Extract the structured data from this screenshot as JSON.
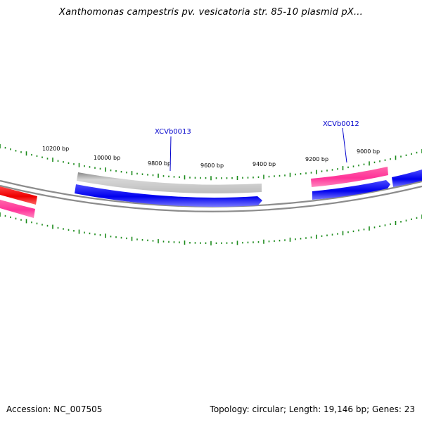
{
  "title": "Xanthomonas campestris pv. vesicatoria str. 85-10 plasmid pX...",
  "footer": {
    "accession": "Accession: NC_007505",
    "summary": "Topology: circular; Length: 19,146 bp; Genes: 23"
  },
  "ticks": [
    {
      "bp": 10200,
      "label": "10200 bp"
    },
    {
      "bp": 10000,
      "label": "10000 bp"
    },
    {
      "bp": 9800,
      "label": "9800 bp"
    },
    {
      "bp": 9600,
      "label": "9600 bp"
    },
    {
      "bp": 9400,
      "label": "9400 bp"
    },
    {
      "bp": 9200,
      "label": "9200 bp"
    },
    {
      "bp": 9000,
      "label": "9000 bp"
    }
  ],
  "gene_labels": [
    {
      "name": "XCVb0013"
    },
    {
      "name": "XCVb0012"
    }
  ],
  "colors": {
    "backbone": "#8c8c8c",
    "tick": "#1a8a1a",
    "cds_blue": "#0000ee",
    "cds_pink": "#ff3399",
    "cds_red": "#ff0000",
    "gene_grey": "#c8c8c8",
    "label_blue": "#0000cc"
  }
}
